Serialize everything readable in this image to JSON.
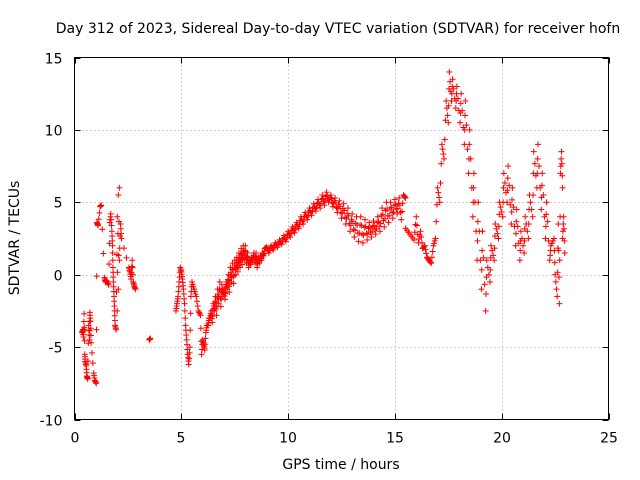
{
  "chart_data": {
    "type": "scatter",
    "title": "Day 312 of 2023, Sidereal Day-to-day VTEC variation (SDTVAR) for receiver hofn",
    "xlabel": "GPS time / hours",
    "ylabel": "SDTVAR / TECUs",
    "xlim": [
      0,
      25
    ],
    "ylim": [
      -10,
      15
    ],
    "xticks": [
      0,
      5,
      10,
      15,
      20,
      25
    ],
    "yticks": [
      -10,
      -5,
      0,
      5,
      10,
      15
    ],
    "grid": true,
    "marker": "+",
    "marker_color": "#ff0000",
    "series": [
      {
        "name": "SDTVAR",
        "points": [
          [
            0.35,
            -4.0
          ],
          [
            0.4,
            -3.8
          ],
          [
            0.42,
            -4.3
          ],
          [
            0.45,
            -2.7
          ],
          [
            0.48,
            -5.5
          ],
          [
            0.5,
            -6.0
          ],
          [
            0.55,
            -6.3
          ],
          [
            0.58,
            -7.0
          ],
          [
            0.62,
            -7.2
          ],
          [
            0.66,
            -3.5
          ],
          [
            0.7,
            -4.5
          ],
          [
            0.72,
            -2.6
          ],
          [
            0.75,
            -3.2
          ],
          [
            0.78,
            -4.7
          ],
          [
            0.9,
            -6.8
          ],
          [
            0.95,
            -7.3
          ],
          [
            1.02,
            -7.5
          ],
          [
            1.05,
            3.6
          ],
          [
            1.1,
            3.4
          ],
          [
            1.2,
            4.7
          ],
          [
            1.25,
            4.8
          ],
          [
            1.4,
            -0.2
          ],
          [
            1.45,
            -0.5
          ],
          [
            1.5,
            -0.4
          ],
          [
            1.6,
            -0.7
          ],
          [
            1.65,
            3.6
          ],
          [
            1.7,
            4.2
          ],
          [
            1.75,
            3.0
          ],
          [
            1.78,
            2.0
          ],
          [
            1.8,
            0.5
          ],
          [
            1.82,
            -0.5
          ],
          [
            1.85,
            -1.5
          ],
          [
            1.88,
            -2.5
          ],
          [
            1.9,
            -3.5
          ],
          [
            1.95,
            -3.8
          ],
          [
            2.0,
            4.0
          ],
          [
            2.05,
            5.5
          ],
          [
            2.1,
            6.0
          ],
          [
            2.15,
            3.5
          ],
          [
            2.2,
            2.5
          ],
          [
            2.1,
            1.0
          ],
          [
            2.05,
            -1.0
          ],
          [
            2.0,
            -2.5
          ],
          [
            2.55,
            0.5
          ],
          [
            2.6,
            0.2
          ],
          [
            2.65,
            -0.3
          ],
          [
            2.7,
            1.0
          ],
          [
            2.75,
            -0.5
          ],
          [
            2.8,
            -0.8
          ],
          [
            2.85,
            -1.0
          ],
          [
            3.5,
            -4.5
          ],
          [
            3.55,
            -4.4
          ],
          [
            4.75,
            -2.5
          ],
          [
            4.8,
            -2.0
          ],
          [
            4.85,
            -1.5
          ],
          [
            4.9,
            -0.5
          ],
          [
            4.95,
            0.5
          ],
          [
            5.0,
            0.2
          ],
          [
            5.05,
            -0.3
          ],
          [
            5.1,
            -1.0
          ],
          [
            5.15,
            -2.0
          ],
          [
            5.2,
            -3.5
          ],
          [
            5.25,
            -4.5
          ],
          [
            5.3,
            -5.5
          ],
          [
            5.35,
            -6.2
          ],
          [
            5.4,
            -5.0
          ],
          [
            5.45,
            -1.5
          ],
          [
            5.5,
            -0.5
          ],
          [
            5.6,
            -1.0
          ],
          [
            5.7,
            -1.5
          ],
          [
            5.8,
            -2.5
          ],
          [
            5.9,
            -2.8
          ],
          [
            6.0,
            -4.5
          ],
          [
            6.1,
            -5.2
          ],
          [
            6.2,
            -3.5
          ],
          [
            6.3,
            -3.0
          ],
          [
            6.4,
            -2.5
          ],
          [
            6.5,
            -2.0
          ],
          [
            6.6,
            -1.5
          ],
          [
            6.7,
            -1.0
          ],
          [
            6.8,
            -0.5
          ],
          [
            6.9,
            -0.7
          ],
          [
            7.0,
            -1.0
          ],
          [
            7.1,
            -0.5
          ],
          [
            7.2,
            0.0
          ],
          [
            7.3,
            0.5
          ],
          [
            7.4,
            0.8
          ],
          [
            7.5,
            1.0
          ],
          [
            7.6,
            1.2
          ],
          [
            7.7,
            1.5
          ],
          [
            7.8,
            1.8
          ],
          [
            7.9,
            2.0
          ],
          [
            8.0,
            2.0
          ],
          [
            8.1,
            1.5
          ],
          [
            8.2,
            1.0
          ],
          [
            8.3,
            1.2
          ],
          [
            8.4,
            1.5
          ],
          [
            8.5,
            1.5
          ],
          [
            8.6,
            1.2
          ],
          [
            8.7,
            1.3
          ],
          [
            8.8,
            1.5
          ],
          [
            8.9,
            1.8
          ],
          [
            9.0,
            1.9
          ],
          [
            9.2,
            2.0
          ],
          [
            9.4,
            2.2
          ],
          [
            9.6,
            2.4
          ],
          [
            9.8,
            2.7
          ],
          [
            10.0,
            3.0
          ],
          [
            10.2,
            3.3
          ],
          [
            10.4,
            3.6
          ],
          [
            10.6,
            4.0
          ],
          [
            10.8,
            4.3
          ],
          [
            11.0,
            4.6
          ],
          [
            11.2,
            4.9
          ],
          [
            11.4,
            5.2
          ],
          [
            11.6,
            5.5
          ],
          [
            11.8,
            5.7
          ],
          [
            12.0,
            5.5
          ],
          [
            12.2,
            5.3
          ],
          [
            12.4,
            5.1
          ],
          [
            12.6,
            4.9
          ],
          [
            12.8,
            4.6
          ],
          [
            13.0,
            4.2
          ],
          [
            13.2,
            4.0
          ],
          [
            13.4,
            4.0
          ],
          [
            13.6,
            3.8
          ],
          [
            13.8,
            3.6
          ],
          [
            14.0,
            3.7
          ],
          [
            14.2,
            4.0
          ],
          [
            14.4,
            4.6
          ],
          [
            14.6,
            5.0
          ],
          [
            14.8,
            5.0
          ],
          [
            15.0,
            5.2
          ],
          [
            15.2,
            5.3
          ],
          [
            15.4,
            5.5
          ],
          [
            15.5,
            5.3
          ],
          [
            16.0,
            4.0
          ],
          [
            16.2,
            3.0
          ],
          [
            16.4,
            2.0
          ],
          [
            16.6,
            1.0
          ],
          [
            16.8,
            2.0
          ],
          [
            17.0,
            6.0
          ],
          [
            17.2,
            9.0
          ],
          [
            17.4,
            12.0
          ],
          [
            17.55,
            14.0
          ],
          [
            17.7,
            13.5
          ],
          [
            17.9,
            13.0
          ],
          [
            18.1,
            12.5
          ],
          [
            18.3,
            12.0
          ],
          [
            18.5,
            10.0
          ],
          [
            18.7,
            7.0
          ],
          [
            18.9,
            5.0
          ],
          [
            19.1,
            3.0
          ],
          [
            19.3,
            1.0
          ],
          [
            19.5,
            2.0
          ],
          [
            19.7,
            3.5
          ],
          [
            19.9,
            5.0
          ],
          [
            20.1,
            7.0
          ],
          [
            20.3,
            7.5
          ],
          [
            20.5,
            6.0
          ],
          [
            20.7,
            4.5
          ],
          [
            20.9,
            3.0
          ],
          [
            21.1,
            4.0
          ],
          [
            21.3,
            5.5
          ],
          [
            21.5,
            8.5
          ],
          [
            21.7,
            9.0
          ],
          [
            21.9,
            7.0
          ],
          [
            22.1,
            5.0
          ],
          [
            22.3,
            2.0
          ],
          [
            22.5,
            0.0
          ],
          [
            22.6,
            -1.5
          ],
          [
            22.7,
            -2.0
          ],
          [
            22.75,
            7.0
          ],
          [
            22.8,
            8.5
          ],
          [
            22.85,
            6.0
          ],
          [
            22.9,
            4.0
          ],
          [
            22.95,
            1.5
          ]
        ],
        "band_points": [
          [
            5.95,
            -5.5
          ],
          [
            6.05,
            -4.8
          ],
          [
            6.15,
            -4.0
          ],
          [
            6.25,
            -3.5
          ],
          [
            6.35,
            -3.0
          ],
          [
            6.45,
            -3.3
          ],
          [
            6.55,
            -2.5
          ],
          [
            6.65,
            -2.8
          ],
          [
            6.75,
            -2.0
          ],
          [
            6.85,
            -2.2
          ],
          [
            6.95,
            -1.5
          ],
          [
            7.05,
            -1.7
          ],
          [
            7.15,
            -1.0
          ],
          [
            7.25,
            -1.2
          ],
          [
            7.35,
            -0.5
          ],
          [
            7.45,
            -0.6
          ],
          [
            7.55,
            0.0
          ],
          [
            7.65,
            0.2
          ],
          [
            7.75,
            0.5
          ],
          [
            7.85,
            0.7
          ],
          [
            7.95,
            1.0
          ],
          [
            8.05,
            0.8
          ],
          [
            8.15,
            0.5
          ],
          [
            8.25,
            0.7
          ],
          [
            8.35,
            1.0
          ],
          [
            8.45,
            0.8
          ],
          [
            8.55,
            0.5
          ],
          [
            8.65,
            0.8
          ],
          [
            8.75,
            1.0
          ],
          [
            8.85,
            1.3
          ],
          [
            9.1,
            1.5
          ],
          [
            9.3,
            1.7
          ],
          [
            9.5,
            1.9
          ],
          [
            9.7,
            2.1
          ],
          [
            9.9,
            2.3
          ],
          [
            10.1,
            2.6
          ],
          [
            10.3,
            2.9
          ],
          [
            10.5,
            3.2
          ],
          [
            10.7,
            3.5
          ],
          [
            10.9,
            3.8
          ],
          [
            11.1,
            4.1
          ],
          [
            11.3,
            4.4
          ],
          [
            11.5,
            4.6
          ],
          [
            11.7,
            4.8
          ],
          [
            11.9,
            5.0
          ],
          [
            12.1,
            4.7
          ],
          [
            12.3,
            4.3
          ],
          [
            12.5,
            3.9
          ],
          [
            12.7,
            3.5
          ],
          [
            12.9,
            3.0
          ],
          [
            13.1,
            2.6
          ],
          [
            13.3,
            2.3
          ],
          [
            13.5,
            2.2
          ],
          [
            13.7,
            2.4
          ],
          [
            13.9,
            2.6
          ],
          [
            14.1,
            2.8
          ],
          [
            14.3,
            3.0
          ],
          [
            14.5,
            3.3
          ],
          [
            14.7,
            3.6
          ],
          [
            14.9,
            3.9
          ],
          [
            15.1,
            4.2
          ],
          [
            15.3,
            3.8
          ],
          [
            15.5,
            3.2
          ],
          [
            15.7,
            2.8
          ],
          [
            15.9,
            2.4
          ],
          [
            16.1,
            2.2
          ],
          [
            16.3,
            1.8
          ],
          [
            16.5,
            1.2
          ],
          [
            16.7,
            0.8
          ],
          [
            16.9,
            2.5
          ],
          [
            17.1,
            5.0
          ],
          [
            17.3,
            8.0
          ],
          [
            17.5,
            10.5
          ],
          [
            17.65,
            12.0
          ],
          [
            17.85,
            11.5
          ],
          [
            18.05,
            10.5
          ],
          [
            18.25,
            9.0
          ],
          [
            18.45,
            7.0
          ],
          [
            18.65,
            4.0
          ],
          [
            18.85,
            1.0
          ],
          [
            19.05,
            -1.0
          ],
          [
            19.25,
            -2.5
          ],
          [
            19.45,
            -0.5
          ],
          [
            19.65,
            1.0
          ],
          [
            19.85,
            2.5
          ],
          [
            20.05,
            4.0
          ],
          [
            20.25,
            5.0
          ],
          [
            20.45,
            3.5
          ],
          [
            20.65,
            2.0
          ],
          [
            20.85,
            1.0
          ],
          [
            21.05,
            1.5
          ],
          [
            21.25,
            2.5
          ],
          [
            21.45,
            4.0
          ],
          [
            21.65,
            6.0
          ],
          [
            21.85,
            4.5
          ],
          [
            22.05,
            2.5
          ],
          [
            22.25,
            1.0
          ],
          [
            22.45,
            2.5
          ],
          [
            22.65,
            3.5
          ],
          [
            22.85,
            2.5
          ]
        ]
      }
    ]
  }
}
